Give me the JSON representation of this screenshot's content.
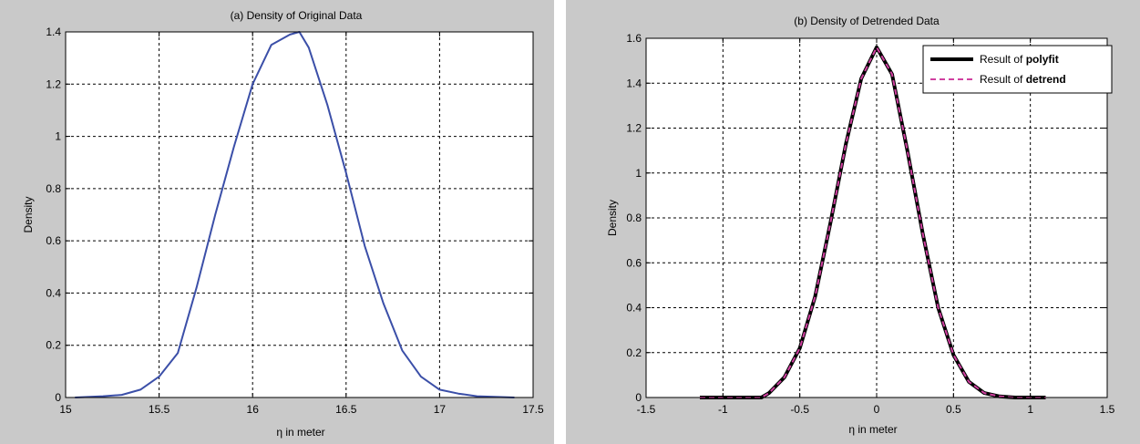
{
  "chart_data": [
    {
      "type": "line",
      "title": "(a) Density of Original Data",
      "xlabel": "η in meter",
      "ylabel": "Density",
      "xlim": [
        15,
        17.5
      ],
      "ylim": [
        0,
        1.4
      ],
      "xticks": [
        "15",
        "15.5",
        "16",
        "16.5",
        "17",
        "17.5"
      ],
      "yticks": [
        "0",
        "0.2",
        "0.4",
        "0.6",
        "0.8",
        "1",
        "1.2",
        "1.4"
      ],
      "grid": true,
      "series": [
        {
          "color": "#3b4fa8",
          "style": "solid",
          "x": [
            15.05,
            15.2,
            15.3,
            15.4,
            15.5,
            15.6,
            15.7,
            15.8,
            15.9,
            16.0,
            16.1,
            16.2,
            16.25,
            16.3,
            16.4,
            16.5,
            16.6,
            16.7,
            16.8,
            16.9,
            17.0,
            17.1,
            17.2,
            17.4
          ],
          "y": [
            0.0,
            0.005,
            0.01,
            0.03,
            0.08,
            0.17,
            0.42,
            0.7,
            0.96,
            1.2,
            1.35,
            1.39,
            1.4,
            1.34,
            1.12,
            0.86,
            0.58,
            0.36,
            0.18,
            0.08,
            0.03,
            0.015,
            0.005,
            0.0
          ]
        }
      ]
    },
    {
      "type": "line",
      "title": "(b) Density of Detrended Data",
      "xlabel": "η in meter",
      "ylabel": "Density",
      "xlim": [
        -1.5,
        1.5
      ],
      "ylim": [
        0,
        1.6
      ],
      "xticks": [
        "-1.5",
        "-1",
        "-0.5",
        "0",
        "0.5",
        "1",
        "1.5"
      ],
      "yticks": [
        "0",
        "0.2",
        "0.4",
        "0.6",
        "0.8",
        "1",
        "1.2",
        "1.4",
        "1.6"
      ],
      "grid": true,
      "legend": "top-right",
      "series": [
        {
          "name_prefix": "Result of ",
          "name_bold": "polyfit",
          "color": "#000000",
          "style": "solid",
          "x": [
            -1.15,
            -0.9,
            -0.75,
            -0.7,
            -0.6,
            -0.5,
            -0.4,
            -0.3,
            -0.2,
            -0.1,
            0.0,
            0.1,
            0.2,
            0.3,
            0.4,
            0.5,
            0.6,
            0.7,
            0.8,
            0.9,
            1.1
          ],
          "y": [
            0.0,
            0.0,
            0.0,
            0.02,
            0.09,
            0.22,
            0.45,
            0.78,
            1.13,
            1.42,
            1.56,
            1.44,
            1.1,
            0.73,
            0.4,
            0.19,
            0.07,
            0.02,
            0.005,
            0.0,
            0.0
          ]
        },
        {
          "name_prefix": "Result of ",
          "name_bold": "detrend",
          "color": "#d040a0",
          "style": "dashed",
          "x": [
            -1.15,
            -0.9,
            -0.75,
            -0.7,
            -0.6,
            -0.5,
            -0.4,
            -0.3,
            -0.2,
            -0.1,
            0.0,
            0.1,
            0.2,
            0.3,
            0.4,
            0.5,
            0.6,
            0.7,
            0.8,
            0.9,
            1.1
          ],
          "y": [
            0.0,
            0.0,
            0.0,
            0.02,
            0.09,
            0.22,
            0.45,
            0.78,
            1.13,
            1.42,
            1.56,
            1.44,
            1.1,
            0.73,
            0.4,
            0.19,
            0.07,
            0.02,
            0.005,
            0.0,
            0.0
          ]
        }
      ]
    }
  ]
}
